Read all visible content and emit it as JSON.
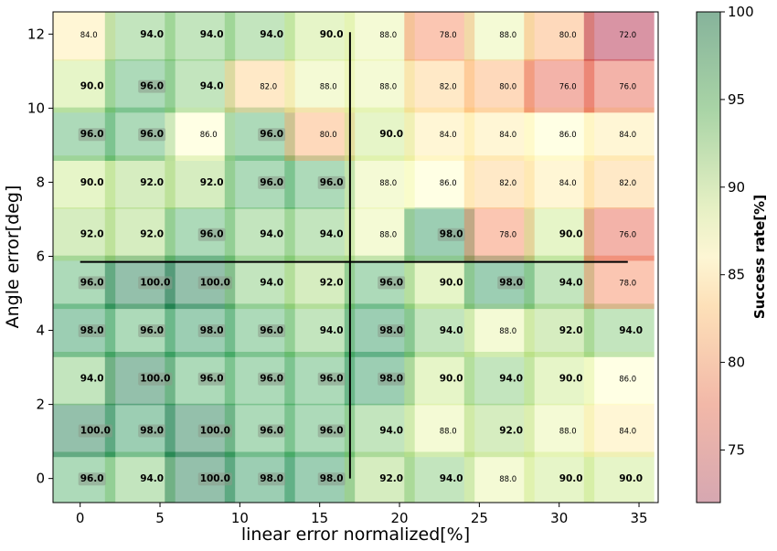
{
  "chart_data": {
    "type": "heatmap",
    "xlabel": "linear error normalized[%]",
    "ylabel": "Angle error[deg]",
    "colorbar_label": "Success rate[%]",
    "colormap": "RdYlGn",
    "colorbar_range": [
      72,
      100
    ],
    "colorbar_ticks": [
      75,
      80,
      85,
      90,
      95,
      100
    ],
    "xlim": [
      -1.7,
      36.2
    ],
    "ylim": [
      -0.65,
      12.6
    ],
    "x_ticks": [
      0,
      5,
      10,
      15,
      20,
      25,
      30,
      35
    ],
    "y_ticks": [
      0,
      2,
      4,
      6,
      8,
      10,
      12
    ],
    "x": [
      0,
      3.75,
      7.5,
      11.25,
      15,
      18.75,
      22.5,
      26.25,
      30,
      33.75
    ],
    "y": [
      0,
      1.3,
      2.7,
      4,
      5.3,
      6.6,
      8,
      9.3,
      10.6,
      12
    ],
    "grid": false,
    "values": [
      [
        96,
        94,
        100,
        98,
        98,
        92,
        94,
        88,
        90,
        90
      ],
      [
        100,
        98,
        100,
        96,
        96,
        94,
        88,
        92,
        88,
        84
      ],
      [
        94,
        100,
        96,
        96,
        96,
        98,
        90,
        94,
        90,
        86
      ],
      [
        98,
        96,
        98,
        96,
        94,
        98,
        94,
        88,
        92,
        94
      ],
      [
        96,
        100,
        100,
        94,
        92,
        96,
        90,
        98,
        94,
        78
      ],
      [
        92,
        92,
        96,
        94,
        94,
        88,
        98,
        78,
        90,
        76
      ],
      [
        90,
        92,
        92,
        96,
        96,
        88,
        86,
        82,
        84,
        82
      ],
      [
        96,
        96,
        86,
        96,
        80,
        90,
        84,
        84,
        86,
        84
      ],
      [
        90,
        96,
        94,
        82,
        88,
        88,
        82,
        80,
        76,
        76
      ],
      [
        84,
        94,
        94,
        94,
        90,
        88,
        78,
        88,
        80,
        72
      ]
    ],
    "labels": [
      [
        "96.0",
        "94.0",
        "100.0",
        "98.0",
        "98.0",
        "92.0",
        "94.0",
        "88.0",
        "90.0",
        "90.0"
      ],
      [
        "100.0",
        "98.0",
        "100.0",
        "96.0",
        "96.0",
        "94.0",
        "88.0",
        "92.0",
        "88.0",
        "84.0"
      ],
      [
        "94.0",
        "100.0",
        "96.0",
        "96.0",
        "96.0",
        "98.0",
        "90.0",
        "94.0",
        "90.0",
        "86.0"
      ],
      [
        "98.0",
        "96.0",
        "98.0",
        "96.0",
        "94.0",
        "98.0",
        "94.0",
        "88.0",
        "92.0",
        "94.0"
      ],
      [
        "96.0",
        "100.0",
        "100.0",
        "94.0",
        "92.0",
        "96.0",
        "90.0",
        "98.0",
        "94.0",
        "78.0"
      ],
      [
        "92.0",
        "92.0",
        "96.0",
        "94.0",
        "94.0",
        "88.0",
        "98.0",
        "78.0",
        "90.0",
        "76.0"
      ],
      [
        "90.0",
        "92.0",
        "92.0",
        "96.0",
        "96.0",
        "88.0",
        "86.0",
        "82.0",
        "84.0",
        "82.0"
      ],
      [
        "96.0",
        "96.0",
        "86.0",
        "96.0",
        "80.0",
        "90.0",
        "84.0",
        "84.0",
        "86.0",
        "84.0"
      ],
      [
        "90.0",
        "96.0",
        "94.0",
        "82.0",
        "88.0",
        "88.0",
        "82.0",
        "80.0",
        "76.0",
        "76.0"
      ],
      [
        "84.0",
        "94.0",
        "94.0",
        "94.0",
        "90.0",
        "88.0",
        "78.0",
        "88.0",
        "80.0",
        "72.0"
      ]
    ],
    "crosshair": {
      "x": 16.9,
      "y": 5.85,
      "x_range": [
        0,
        34.3
      ],
      "y_range": [
        0,
        12.05
      ]
    }
  }
}
